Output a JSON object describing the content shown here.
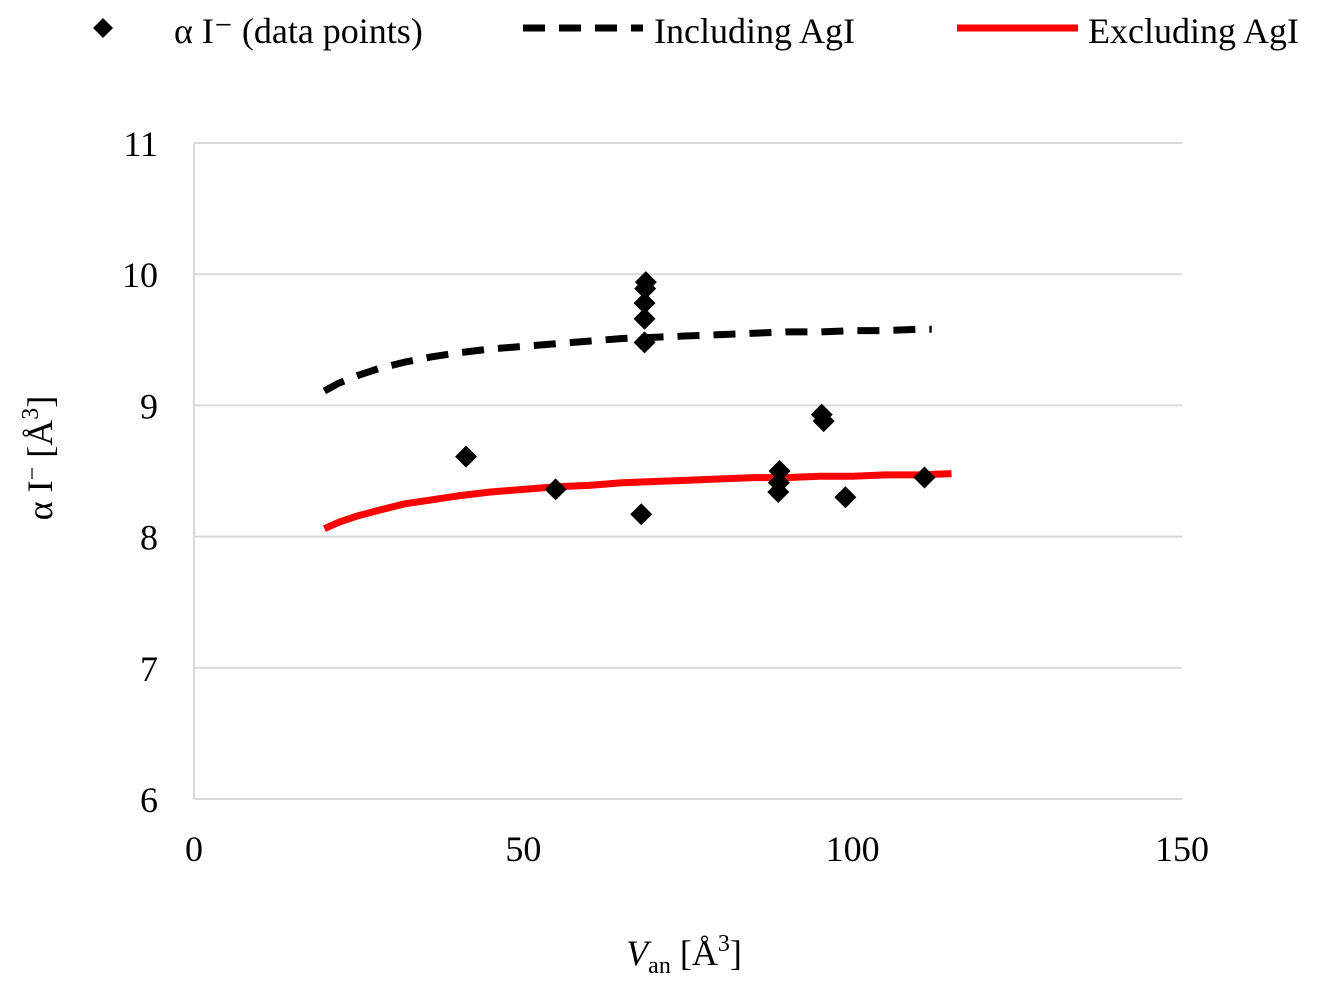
{
  "chart_data": {
    "type": "scatter",
    "title": "",
    "xlabel": {
      "italic": "V",
      "subscript": "an",
      "unit_prefix": "[Å",
      "unit_sup": "3",
      "unit_suffix": "]"
    },
    "ylabel": {
      "main": "α I",
      "sup_minus": "−",
      "unit_prefix": "[Å",
      "unit_sup": "3",
      "unit_suffix": "]"
    },
    "xlim": [
      0,
      150
    ],
    "ylim": [
      6,
      11
    ],
    "xticks": [
      0,
      50,
      100,
      150
    ],
    "yticks": [
      6,
      7,
      8,
      9,
      10,
      11
    ],
    "grid": true,
    "legend_position": "top",
    "legend": [
      {
        "name": "α I⁻ (data points)",
        "marker": "diamond",
        "color": "#000000"
      },
      {
        "name": "Including AgI",
        "style": "dashed",
        "color": "#000000"
      },
      {
        "name": "Excluding AgI",
        "style": "solid",
        "color": "#ff0000"
      }
    ],
    "series": [
      {
        "name": "α I⁻ (data points)",
        "type": "scatter",
        "color": "#000000",
        "points": [
          {
            "x": 41.3,
            "y": 8.61
          },
          {
            "x": 54.9,
            "y": 8.36
          },
          {
            "x": 67.9,
            "y": 8.17
          },
          {
            "x": 68.4,
            "y": 9.48
          },
          {
            "x": 68.4,
            "y": 9.66
          },
          {
            "x": 68.4,
            "y": 9.78
          },
          {
            "x": 68.5,
            "y": 9.89
          },
          {
            "x": 68.6,
            "y": 9.94
          },
          {
            "x": 88.7,
            "y": 8.34
          },
          {
            "x": 88.8,
            "y": 8.41
          },
          {
            "x": 88.9,
            "y": 8.5
          },
          {
            "x": 95.3,
            "y": 8.93
          },
          {
            "x": 95.6,
            "y": 8.88
          },
          {
            "x": 98.9,
            "y": 8.3
          },
          {
            "x": 110.9,
            "y": 8.45
          }
        ]
      },
      {
        "name": "Including AgI",
        "type": "line",
        "style": "dashed",
        "color": "#000000",
        "x": [
          19.8,
          22,
          25,
          28,
          32,
          36,
          40,
          45,
          50,
          55,
          60,
          65,
          70,
          75,
          80,
          85,
          90,
          95,
          100,
          105,
          110,
          112
        ],
        "y": [
          9.11,
          9.17,
          9.23,
          9.28,
          9.33,
          9.37,
          9.4,
          9.43,
          9.45,
          9.47,
          9.49,
          9.51,
          9.52,
          9.53,
          9.54,
          9.55,
          9.56,
          9.56,
          9.57,
          9.57,
          9.58,
          9.58
        ]
      },
      {
        "name": "Excluding AgI",
        "type": "line",
        "style": "solid",
        "color": "#ff0000",
        "x": [
          19.8,
          22,
          25,
          28,
          32,
          36,
          40,
          45,
          50,
          55,
          60,
          65,
          70,
          75,
          80,
          85,
          90,
          95,
          100,
          105,
          110,
          115
        ],
        "y": [
          8.06,
          8.11,
          8.16,
          8.2,
          8.25,
          8.28,
          8.31,
          8.34,
          8.36,
          8.38,
          8.39,
          8.41,
          8.42,
          8.43,
          8.44,
          8.45,
          8.45,
          8.46,
          8.46,
          8.47,
          8.47,
          8.48
        ]
      }
    ]
  }
}
